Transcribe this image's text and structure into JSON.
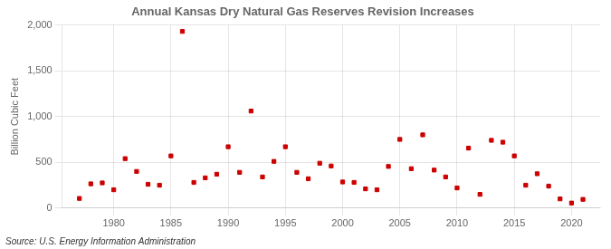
{
  "chart_data": {
    "type": "scatter",
    "title": "Annual Kansas Dry Natural Gas Reserves Revision Increases",
    "ylabel": "Billion Cubic Feet",
    "annotations": [
      "Source: U.S. Energy Information Administration"
    ],
    "color": "#cc0000",
    "marker": "square",
    "grid": true,
    "x": [
      1977,
      1978,
      1979,
      1980,
      1981,
      1982,
      1983,
      1984,
      1985,
      1986,
      1987,
      1988,
      1989,
      1990,
      1991,
      1992,
      1993,
      1994,
      1995,
      1996,
      1997,
      1998,
      1999,
      2000,
      2001,
      2002,
      2003,
      2004,
      2005,
      2006,
      2007,
      2008,
      2009,
      2010,
      2011,
      2012,
      2013,
      2014,
      2015,
      2016,
      2017,
      2018,
      2019,
      2020,
      2021
    ],
    "values": [
      105,
      265,
      275,
      200,
      540,
      400,
      260,
      250,
      570,
      1930,
      280,
      330,
      370,
      670,
      390,
      1060,
      340,
      510,
      670,
      390,
      320,
      490,
      460,
      285,
      280,
      210,
      200,
      455,
      750,
      430,
      800,
      415,
      340,
      220,
      655,
      150,
      740,
      720,
      570,
      250,
      375,
      240,
      100,
      55,
      95
    ],
    "xlim": [
      1975.5,
      2022.5
    ],
    "ylim": [
      0,
      2000
    ],
    "xticks": [
      1980,
      1985,
      1990,
      1995,
      2000,
      2005,
      2010,
      2015,
      2020
    ],
    "yticks": [
      0,
      500,
      {
        "value": 1000,
        "label": "1,000"
      },
      {
        "value": 1500,
        "label": "1,500"
      },
      {
        "value": 2000,
        "label": "2,000"
      }
    ]
  }
}
